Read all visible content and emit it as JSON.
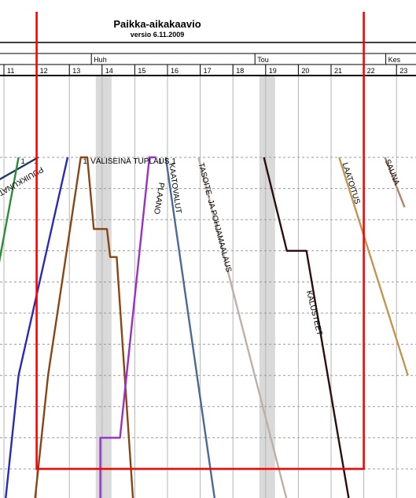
{
  "chart_data": {
    "type": "line",
    "title": "Paikka-aikakaavio",
    "subtitle": "versio 6.11.2009",
    "months": [
      {
        "label": "Huh",
        "at_week": 13
      },
      {
        "label": "Tou",
        "at_week": 18
      },
      {
        "label": "Kes",
        "at_week": 22
      }
    ],
    "weeks": [
      11,
      12,
      13,
      14,
      15,
      16,
      17,
      18,
      19,
      20,
      21,
      22,
      23
    ],
    "holiday_weeks": [
      14,
      19
    ],
    "x_axis": "week",
    "y_axis": "location (top to bottom)",
    "series": [
      {
        "name": "PUUIKKUNAT, O",
        "color": "#1f3a6b",
        "points": [
          [
            10.0,
            1.2
          ],
          [
            12.0,
            0.0
          ]
        ],
        "label_week": 12.1,
        "label_y": 0.3
      },
      {
        "name": "",
        "color": "#2e8b3a",
        "points": [
          [
            10.0,
            8.2
          ],
          [
            10.1,
            7.0
          ],
          [
            10.2,
            6.8
          ],
          [
            11.4,
            0.0
          ]
        ]
      },
      {
        "name": "",
        "color": "#2a2ab8",
        "points": [
          [
            11.0,
            11.0
          ],
          [
            11.4,
            7.0
          ],
          [
            12.9,
            0.0
          ]
        ]
      },
      {
        "name": "VÄLISEINÄ TUPLAUS 1",
        "color": "#8b4513",
        "points": [
          [
            11.9,
            11.0
          ],
          [
            12.3,
            7.0
          ],
          [
            13.3,
            0.0
          ],
          [
            13.5,
            0.0
          ],
          [
            13.7,
            2.3
          ],
          [
            14.1,
            2.3
          ],
          [
            14.2,
            3.2
          ],
          [
            14.4,
            3.2
          ],
          [
            14.9,
            11.0
          ]
        ],
        "label_week": 13.6,
        "label_y": 0.2
      },
      {
        "name": "PLAANO",
        "color": "#9a2fc9",
        "points": [
          [
            13.9,
            11.0
          ],
          [
            13.9,
            9.0
          ],
          [
            14.1,
            9.0
          ],
          [
            14.5,
            9.0
          ],
          [
            15.4,
            0.0
          ],
          [
            15.6,
            0.0
          ]
        ],
        "label_week": 15.7,
        "label_y": 0.8
      },
      {
        "name": "KAATOVALUT",
        "color": "#4a6a93",
        "points": [
          [
            15.9,
            0.0
          ],
          [
            17.4,
            11.0
          ]
        ],
        "label_week": 16.0,
        "label_y": 0.2
      },
      {
        "name": "TASOITE- JA POHJAMAALAUS",
        "color": "#bdb0a8",
        "points": [
          [
            16.9,
            0.0
          ],
          [
            19.6,
            11.0
          ]
        ],
        "label_week": 16.9,
        "label_y": 0.2
      },
      {
        "name": "KALUSTEET",
        "color": "#2a0f0f",
        "points": [
          [
            18.9,
            0.0
          ],
          [
            19.6,
            3.0
          ],
          [
            20.2,
            3.0
          ],
          [
            21.5,
            11.0
          ]
        ],
        "label_week": 20.2,
        "label_y": 4.3
      },
      {
        "name": "LAATOITUS",
        "color": "#c09650",
        "points": [
          [
            21.2,
            0.0
          ],
          [
            23.3,
            7.0
          ]
        ],
        "label_week": 21.3,
        "label_y": 0.2
      },
      {
        "name": "SAUNA",
        "color": "#b1856a",
        "points": [
          [
            22.6,
            0.0
          ],
          [
            23.2,
            1.6
          ]
        ],
        "label_week": 22.6,
        "label_y": 0.1
      }
    ],
    "markers": [
      {
        "text": "1",
        "week": 11.8,
        "y": 0.0
      },
      {
        "text": "1",
        "week": 11.4,
        "y": 0.0
      },
      {
        "text": "1",
        "week": 13.3,
        "y": 0.0
      },
      {
        "text": "1",
        "week": 15.6,
        "y": 0.0
      }
    ],
    "highlight_box": {
      "color": "#ff0000",
      "week_start": 12.0,
      "week_end": 22.0,
      "y_start": -3.5,
      "y_end": 10.0,
      "y_end_right": 10.0
    },
    "grid": true,
    "legend": "none"
  }
}
